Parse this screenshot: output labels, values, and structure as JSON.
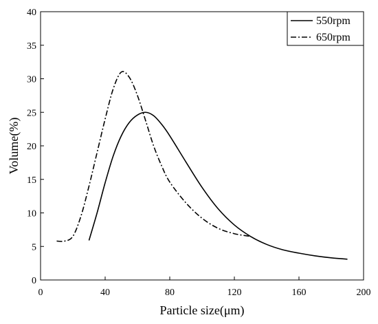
{
  "chart_data": {
    "type": "line",
    "xlabel": "Particle size(μm)",
    "ylabel": "Volume(%)",
    "xlim": [
      0,
      200
    ],
    "ylim": [
      0,
      40
    ],
    "xticks": [
      0,
      40,
      80,
      120,
      160,
      200
    ],
    "yticks": [
      0,
      5,
      10,
      15,
      20,
      25,
      30,
      35,
      40
    ],
    "grid": false,
    "legend": "top-right",
    "series": [
      {
        "name": "550rpm",
        "style": "solid",
        "color": "#000000",
        "x": [
          30,
          35,
          40,
          45,
          50,
          55,
          60,
          65,
          70,
          75,
          80,
          90,
          100,
          110,
          120,
          130,
          140,
          150,
          160,
          170,
          180,
          190
        ],
        "y": [
          5.9,
          10.0,
          14.5,
          18.5,
          21.5,
          23.5,
          24.6,
          25.0,
          24.5,
          23.2,
          21.5,
          17.6,
          13.8,
          10.6,
          8.2,
          6.5,
          5.3,
          4.5,
          4.0,
          3.6,
          3.3,
          3.1
        ]
      },
      {
        "name": "650rpm",
        "style": "dashdot",
        "color": "#000000",
        "x": [
          10,
          15,
          20,
          25,
          30,
          35,
          40,
          45,
          50,
          55,
          60,
          65,
          70,
          75,
          80,
          90,
          100,
          110,
          120,
          130
        ],
        "y": [
          5.8,
          5.8,
          6.5,
          9.5,
          14.0,
          19.0,
          24.0,
          28.5,
          31.0,
          30.2,
          27.5,
          23.8,
          20.0,
          17.0,
          14.6,
          11.5,
          9.2,
          7.7,
          6.9,
          6.5
        ]
      }
    ]
  }
}
